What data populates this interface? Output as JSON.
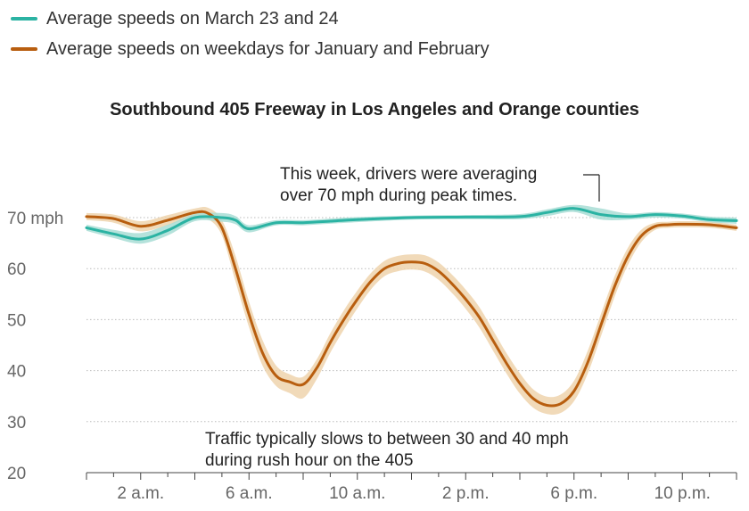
{
  "legend": {
    "items": [
      {
        "label": "Average speeds on March 23 and 24",
        "color": "#2bb3a3"
      },
      {
        "label": "Average speeds on weekdays for January and February",
        "color": "#b85e0f"
      }
    ]
  },
  "chart_data": {
    "type": "line",
    "title": "Southbound 405 Freeway in Los Angeles and Orange counties",
    "xlabel": "",
    "ylabel": "",
    "ylim": [
      20,
      73
    ],
    "xlim": [
      0,
      24
    ],
    "grid": true,
    "y_ticks": [
      {
        "value": 70,
        "label": "70 mph"
      },
      {
        "value": 60,
        "label": "60"
      },
      {
        "value": 50,
        "label": "50"
      },
      {
        "value": 40,
        "label": "40"
      },
      {
        "value": 30,
        "label": "30"
      },
      {
        "value": 20,
        "label": "20"
      }
    ],
    "x_ticks": [
      {
        "value": 2,
        "label": "2 a.m."
      },
      {
        "value": 6,
        "label": "6 a.m."
      },
      {
        "value": 10,
        "label": "10 a.m."
      },
      {
        "value": 14,
        "label": "2 p.m."
      },
      {
        "value": 18,
        "label": "6 p.m."
      },
      {
        "value": 22,
        "label": "10 p.m."
      }
    ],
    "series": [
      {
        "name": "Average speeds on March 23 and 24",
        "color": "#2bb3a3",
        "band_color": "#a8ddd5",
        "x": [
          0,
          1,
          2,
          3,
          4,
          5,
          5.5,
          6,
          7,
          8,
          9,
          10,
          12,
          14,
          16,
          17,
          18,
          19,
          20,
          21,
          22,
          23,
          24
        ],
        "values": [
          68,
          66.8,
          65.8,
          67.5,
          70,
          70,
          69.5,
          67.8,
          69,
          69,
          69.3,
          69.6,
          70,
          70.1,
          70.2,
          71,
          71.8,
          70.6,
          70.2,
          70.6,
          70.3,
          69.6,
          69.4
        ],
        "upper": [
          68.6,
          67.6,
          67,
          68.6,
          70.7,
          70.9,
          70.3,
          68.5,
          69.5,
          69.5,
          69.8,
          70.1,
          70.4,
          70.5,
          70.7,
          71.6,
          72.5,
          71.8,
          70.8,
          71.1,
          70.8,
          70.2,
          70
        ],
        "lower": [
          67.4,
          66,
          64.9,
          66.5,
          69.3,
          69.2,
          68.7,
          67.1,
          68.5,
          68.5,
          68.8,
          69.1,
          69.6,
          69.7,
          69.7,
          70.3,
          71.1,
          69.6,
          69.6,
          70,
          69.8,
          69.1,
          68.8
        ]
      },
      {
        "name": "Average speeds on weekdays for January and February",
        "color": "#b85e0f",
        "band_color": "#efd3ad",
        "x": [
          0,
          1,
          2,
          3,
          4,
          4.5,
          5,
          5.5,
          6,
          6.5,
          7,
          7.5,
          8,
          8.5,
          9,
          9.5,
          10,
          10.5,
          11,
          11.5,
          12,
          12.5,
          13,
          13.5,
          14,
          14.5,
          15,
          15.5,
          16,
          16.5,
          17,
          17.5,
          18,
          18.5,
          19,
          19.5,
          20,
          20.5,
          21,
          21.5,
          22,
          23,
          24
        ],
        "values": [
          70.2,
          69.8,
          68.3,
          69.5,
          71,
          70.8,
          68,
          60,
          51,
          43.5,
          39,
          37.8,
          37.3,
          40.5,
          45.5,
          50,
          54,
          57.5,
          60,
          61,
          61.3,
          61,
          59.5,
          57,
          54,
          50.5,
          46,
          41.5,
          37.5,
          34.5,
          33.2,
          33.5,
          36,
          41.5,
          49,
          56.5,
          62.5,
          66.5,
          68.3,
          68.6,
          68.7,
          68.6,
          68
        ],
        "upper": [
          70.9,
          70.6,
          69.3,
          70.5,
          71.8,
          71.9,
          69.5,
          62.5,
          53.5,
          46,
          41,
          39.3,
          38.8,
          42.2,
          47.3,
          51.8,
          55.7,
          59.1,
          61.5,
          62.5,
          62.8,
          62.6,
          61.2,
          58.8,
          55.9,
          52.5,
          48,
          43.5,
          39.5,
          36.3,
          34.9,
          35.3,
          38,
          43.8,
          51.2,
          58.5,
          64.2,
          67.7,
          69,
          69.2,
          69.3,
          69.2,
          68.6
        ],
        "lower": [
          69.5,
          69,
          67.3,
          68.5,
          70.2,
          69.7,
          66.5,
          57.5,
          48.5,
          41,
          37,
          35.6,
          34.6,
          38.3,
          43.5,
          48,
          52.2,
          55.9,
          58.5,
          59.5,
          59.8,
          59.4,
          57.8,
          55.2,
          52.1,
          48.5,
          44,
          39.5,
          35.5,
          32.7,
          31.5,
          31.7,
          34,
          39.3,
          46.8,
          54.5,
          60.8,
          65.3,
          67.6,
          68,
          68.1,
          68,
          67.4
        ]
      }
    ],
    "annotations": [
      {
        "lines": [
          "This week, drivers were averaging",
          "over 70 mph during peak times."
        ]
      },
      {
        "lines": [
          "Traffic typically slows to between 30 and 40 mph",
          "during rush hour on the 405"
        ]
      }
    ]
  }
}
